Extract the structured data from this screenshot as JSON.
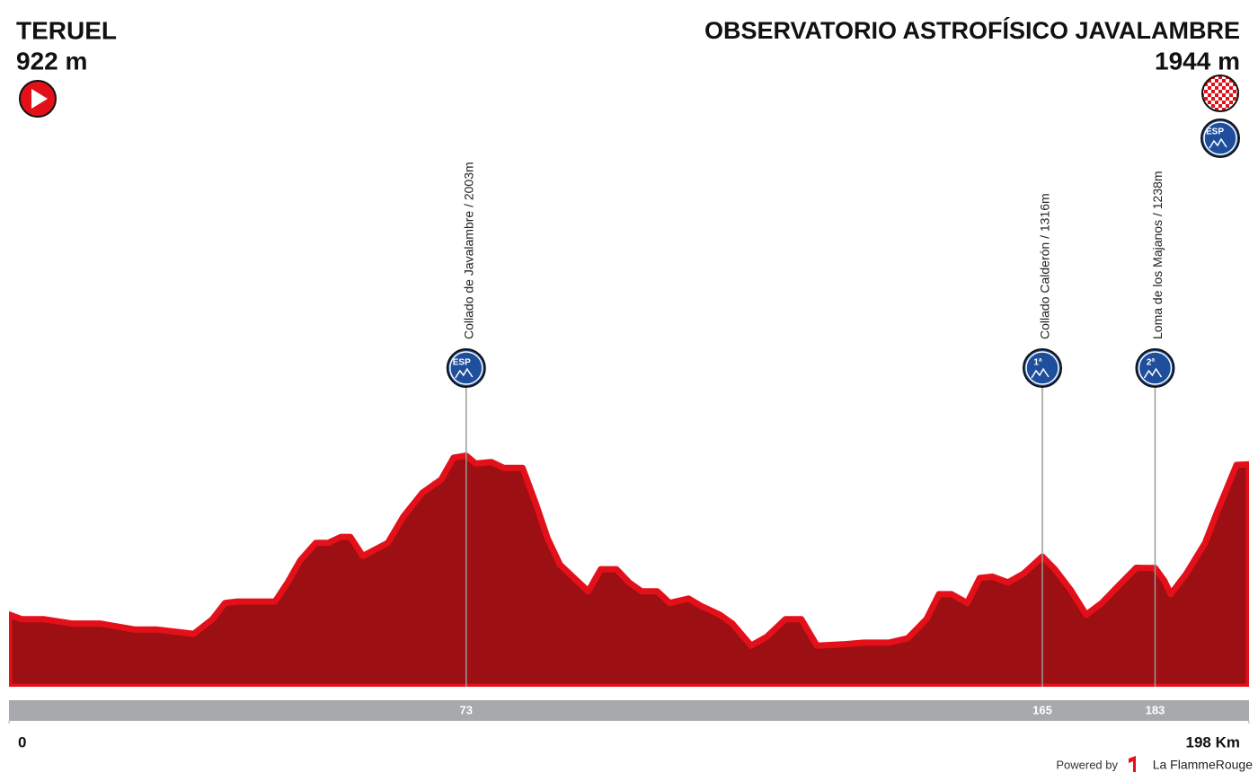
{
  "chart_data": {
    "type": "area",
    "start": {
      "name": "TERUEL",
      "elevation": "922 m"
    },
    "finish": {
      "name": "OBSERVATORIO ASTROFÍSICO JAVALAMBRE",
      "elevation": "1944 m",
      "badge": "ESP"
    },
    "x": [
      0,
      2,
      5.5,
      10,
      14.5,
      20,
      23.5,
      29.5,
      32.5,
      34.5,
      36.5,
      40,
      42.5,
      44.5,
      46.5,
      49,
      51,
      53,
      54.5,
      56.5,
      60.5,
      63,
      66,
      69,
      71,
      73,
      74.5,
      77,
      79,
      82,
      84,
      86,
      88,
      92.5,
      94.5,
      97,
      99,
      101,
      103.5,
      105.5,
      108.5,
      110.5,
      113.5,
      115.5,
      118.5,
      121,
      124,
      126.5,
      129,
      133.5,
      136.5,
      140.5,
      143.5,
      146.5,
      148.5,
      150.5,
      153,
      155,
      157,
      159.5,
      162,
      165,
      167,
      169.5,
      172,
      174.5,
      177,
      180,
      183,
      184.5,
      185.5,
      188,
      191,
      193,
      196,
      198
    ],
    "values": [
      922,
      890,
      890,
      860,
      860,
      820,
      820,
      790,
      890,
      1000,
      1010,
      1010,
      1010,
      1140,
      1290,
      1410,
      1410,
      1450,
      1450,
      1320,
      1410,
      1590,
      1750,
      1840,
      1990,
      2003,
      1950,
      1960,
      1920,
      1920,
      1690,
      1440,
      1260,
      1080,
      1230,
      1230,
      1140,
      1080,
      1080,
      1000,
      1030,
      980,
      920,
      860,
      710,
      770,
      890,
      890,
      710,
      720,
      730,
      730,
      760,
      890,
      1060,
      1060,
      1000,
      1170,
      1180,
      1140,
      1200,
      1316,
      1230,
      1090,
      920,
      1000,
      1110,
      1240,
      1238,
      1150,
      1060,
      1200,
      1410,
      1630,
      1940,
      1944
    ],
    "color": "#9c0f12",
    "edge_color": "#e3101a",
    "xlim": [
      0,
      198
    ],
    "ylim": [
      430,
      4250
    ],
    "xticks": [
      0,
      {
        "value": 198,
        "label": "198 Km"
      }
    ],
    "climbs": [
      {
        "label": "Collado de Javalambre / 2003m",
        "km": 73,
        "category": "ESP"
      },
      {
        "label": "Collado Calderón / 1316m",
        "km": 165,
        "category": "1ª"
      },
      {
        "label": "Loma de los Majanos / 1238m",
        "km": 183,
        "category": "2ª"
      }
    ]
  },
  "footer": {
    "powered": "Powered by",
    "brand": "La FlammeRouge"
  }
}
